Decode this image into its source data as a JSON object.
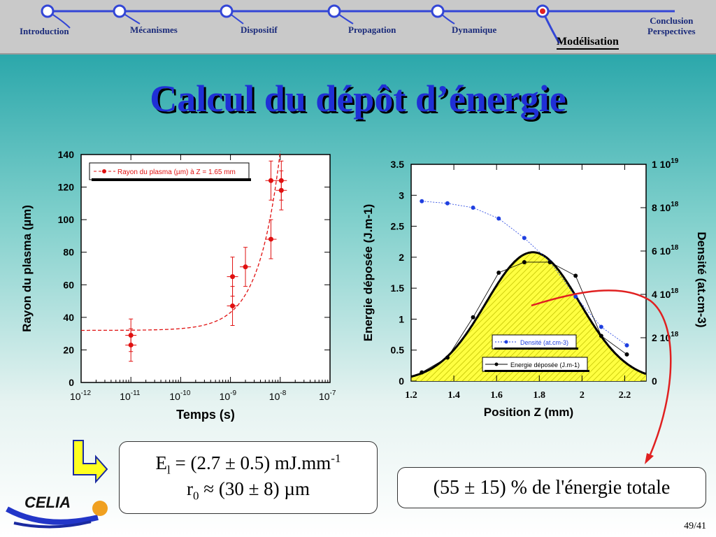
{
  "nav": {
    "items": [
      {
        "label": "Introduction"
      },
      {
        "label": "Mécanismes"
      },
      {
        "label": "Dispositif"
      },
      {
        "label": "Propagation"
      },
      {
        "label": "Dynamique"
      },
      {
        "label": "Modélisation",
        "active": true
      },
      {
        "label_line1": "Conclusion",
        "label_line2": "Perspectives"
      }
    ],
    "line_color": "#3346d6",
    "active_dot_color": "#e02020"
  },
  "title": "Calcul du dépôt d’énergie",
  "equation": {
    "E_symbol": "E",
    "E_sub": "l",
    "E_value": "= (2.7 ± 0.5) mJ.mm",
    "E_exp": "-1",
    "r_symbol": "r",
    "r_sub": "0",
    "r_value": "≈ (30 ± 8) µm"
  },
  "result_text": "(55 ± 15) % de l'énergie totale",
  "logo_text": "CELIA",
  "page_number": "49/41",
  "chart_data": [
    {
      "type": "scatter",
      "xlabel": "Temps (s)",
      "ylabel": "Rayon du plasma (µm)",
      "x_scale": "log",
      "xlim": [
        1e-12,
        1e-07
      ],
      "ylim": [
        0,
        140
      ],
      "x_ticks": [
        {
          "base": "10",
          "exp": "-12"
        },
        {
          "base": "10",
          "exp": "-11"
        },
        {
          "base": "10",
          "exp": "-10"
        },
        {
          "base": "10",
          "exp": "-9"
        },
        {
          "base": "10",
          "exp": "-8"
        },
        {
          "base": "10",
          "exp": "-7"
        }
      ],
      "y_ticks": [
        "0",
        "20",
        "40",
        "60",
        "80",
        "100",
        "120",
        "140"
      ],
      "legend": "top-left",
      "series": [
        {
          "name": "Rayon du plasma (µm) à Z = 1.65 mm",
          "color": "#e01010",
          "points": [
            {
              "x": 1e-11,
              "y": 29,
              "err": 10
            },
            {
              "x": 1e-11,
              "y": 23,
              "err": 10
            },
            {
              "x": 1.1e-09,
              "y": 65,
              "err": 12
            },
            {
              "x": 1.1e-09,
              "y": 47,
              "err": 12
            },
            {
              "x": 2e-09,
              "y": 71,
              "err": 12
            },
            {
              "x": 6.5e-09,
              "y": 124,
              "err": 12
            },
            {
              "x": 6.5e-09,
              "y": 88,
              "err": 12
            },
            {
              "x": 1.05e-08,
              "y": 124,
              "err": 12
            },
            {
              "x": 1.05e-08,
              "y": 118,
              "err": 12
            }
          ],
          "fit": {
            "style": "dashed",
            "baseline": 32,
            "scale": 11,
            "t0": 1e-09
          }
        }
      ]
    },
    {
      "type": "line",
      "xlabel": "Position Z (mm)",
      "ylabel": "Energie déposée (J.m-1)",
      "y2label": "Densité (at.cm-3)",
      "xlim": [
        1.2,
        2.3
      ],
      "ylim": [
        0,
        3.5
      ],
      "y2lim": [
        0,
        1e+19
      ],
      "x_ticks": [
        "1.2",
        "1.4",
        "1.6",
        "1.8",
        "2",
        "2.2"
      ],
      "y_ticks": [
        "0",
        "0.5",
        "1",
        "1.5",
        "2",
        "2.5",
        "3",
        "3.5"
      ],
      "y2_ticks": [
        {
          "mantissa": "0",
          "exp": ""
        },
        {
          "mantissa": "2 10",
          "exp": "18"
        },
        {
          "mantissa": "4 10",
          "exp": "18"
        },
        {
          "mantissa": "6 10",
          "exp": "18"
        },
        {
          "mantissa": "8 10",
          "exp": "18"
        },
        {
          "mantissa": "1 10",
          "exp": "19"
        }
      ],
      "legend": "bottom-right",
      "series": [
        {
          "name": "Densité (at.cm-3)",
          "axis": "right",
          "color": "#1f3fe0",
          "x": [
            1.25,
            1.37,
            1.49,
            1.61,
            1.73,
            1.85,
            1.97,
            2.09,
            2.21
          ],
          "y": [
            8.3e+18,
            8.2e+18,
            8e+18,
            7.5e+18,
            6.6e+18,
            5.5e+18,
            3.9e+18,
            2.5e+18,
            1.65e+18
          ]
        },
        {
          "name": "Energie déposée (J.m-1)",
          "axis": "left",
          "color": "#000000",
          "x": [
            1.25,
            1.37,
            1.49,
            1.61,
            1.73,
            1.85,
            1.97,
            2.09,
            2.21
          ],
          "y": [
            0.14,
            0.38,
            1.03,
            1.75,
            1.92,
            1.92,
            1.7,
            0.73,
            0.43
          ]
        },
        {
          "name": "gaussian-fit",
          "style": "thick-solid-hatched",
          "color": "#000000",
          "fill": "#ffff40",
          "amplitude": 2.08,
          "center": 1.77,
          "sigma": 0.22
        }
      ]
    }
  ],
  "arrow_color": "#e02020"
}
